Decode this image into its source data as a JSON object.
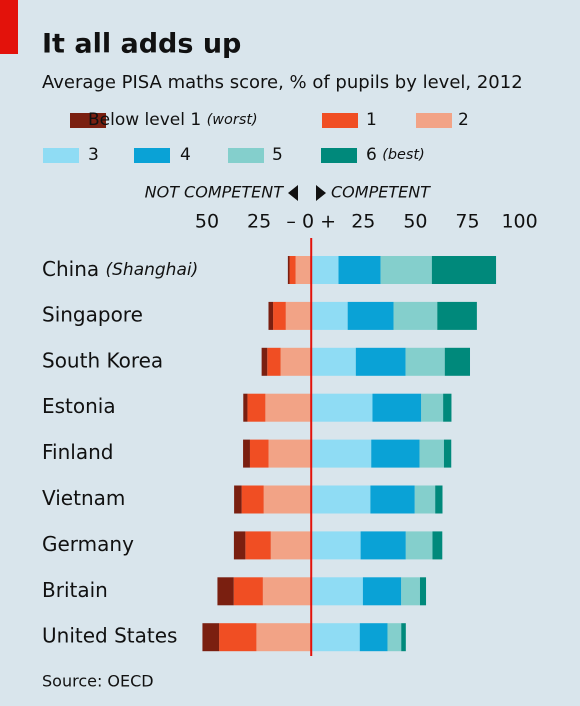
{
  "chart_data": {
    "type": "diverging-stacked-bar",
    "title": "It all adds up",
    "subtitle": "Average PISA maths score, % of pupils by level, 2012",
    "annotations": {
      "left": "NOT COMPETENT",
      "right": "COMPETENT"
    },
    "source": "Source: OECD",
    "categories": [
      "China (Shanghai)",
      "Singapore",
      "South Korea",
      "Estonia",
      "Finland",
      "Vietnam",
      "Germany",
      "Britain",
      "United States"
    ],
    "series": [
      {
        "name": "Below level 1 (worst)",
        "color": "#7a1f10",
        "side": "left",
        "values": [
          0.8,
          2.2,
          2.7,
          2.0,
          3.3,
          3.6,
          5.5,
          7.8,
          8.0
        ]
      },
      {
        "name": "1",
        "color": "#f04e23",
        "side": "left",
        "values": [
          2.9,
          6.1,
          6.4,
          8.6,
          8.9,
          10.6,
          12.2,
          14.0,
          17.9
        ]
      },
      {
        "name": "2",
        "color": "#f2a386",
        "side": "left",
        "values": [
          7.5,
          12.2,
          14.7,
          22.0,
          20.5,
          22.8,
          19.4,
          23.2,
          26.3
        ]
      },
      {
        "name": "3",
        "color": "#8fdcf4",
        "side": "right",
        "values": [
          13.1,
          17.5,
          21.4,
          29.4,
          28.8,
          28.4,
          23.7,
          24.8,
          23.3
        ]
      },
      {
        "name": "4",
        "color": "#0aa2d6",
        "side": "right",
        "values": [
          20.2,
          22.0,
          23.9,
          23.4,
          23.2,
          21.3,
          21.7,
          18.4,
          13.3
        ]
      },
      {
        "name": "5",
        "color": "#84cfcc",
        "side": "right",
        "values": [
          24.6,
          21.0,
          18.8,
          10.5,
          11.7,
          9.8,
          12.8,
          9.0,
          6.6
        ]
      },
      {
        "name": "6 (best)",
        "color": "#00897b",
        "side": "right",
        "values": [
          30.8,
          19.0,
          12.1,
          4.0,
          3.5,
          3.5,
          4.7,
          2.9,
          2.2
        ]
      }
    ],
    "xlim": [
      -55,
      100
    ],
    "xticks": [
      {
        "value": -50,
        "label": "50"
      },
      {
        "value": -25,
        "label": "25"
      },
      {
        "value": 0,
        "label": "– 0 +"
      },
      25,
      50,
      75,
      100
    ]
  }
}
